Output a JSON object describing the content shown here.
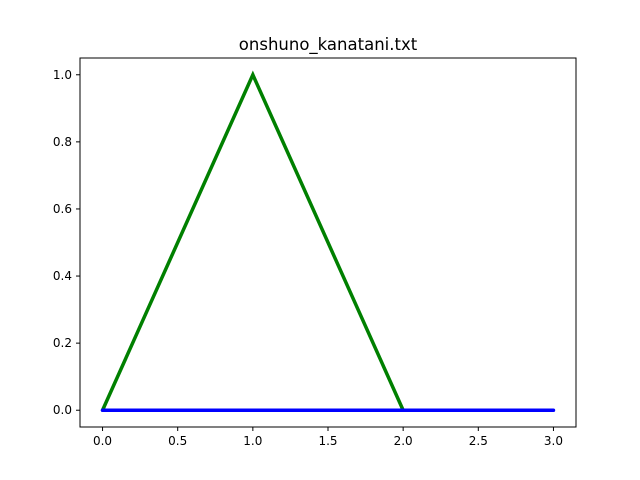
{
  "chart_data": {
    "type": "line",
    "title": "onshuno_kanatani.txt",
    "xlabel": "",
    "ylabel": "",
    "xlim": [
      -0.15,
      3.15
    ],
    "ylim": [
      -0.05,
      1.05
    ],
    "xticks": [
      0.0,
      0.5,
      1.0,
      1.5,
      2.0,
      2.5,
      3.0
    ],
    "xtick_labels": [
      "0.0",
      "0.5",
      "1.0",
      "1.5",
      "2.0",
      "2.5",
      "3.0"
    ],
    "yticks": [
      0.0,
      0.2,
      0.4,
      0.6,
      0.8,
      1.0
    ],
    "ytick_labels": [
      "0.0",
      "0.2",
      "0.4",
      "0.6",
      "0.8",
      "1.0"
    ],
    "grid": false,
    "legend": "none",
    "series": [
      {
        "color": "#008000",
        "x": [
          0,
          1,
          2
        ],
        "y": [
          0,
          1,
          0
        ]
      },
      {
        "color": "#0000ff",
        "x": [
          0,
          1,
          2,
          3
        ],
        "y": [
          0,
          0,
          0,
          0
        ]
      }
    ]
  }
}
